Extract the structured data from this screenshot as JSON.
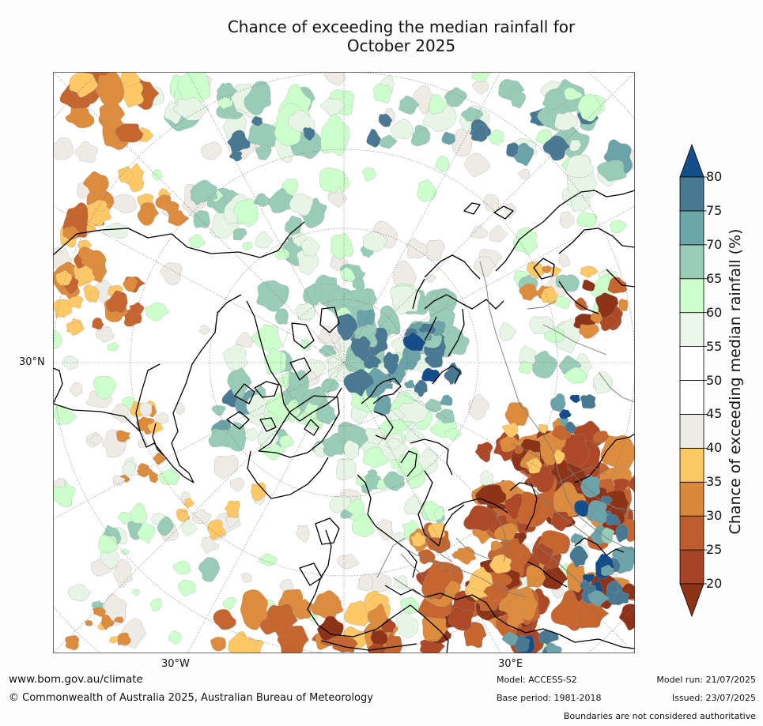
{
  "title": {
    "line1": "Chance of exceeding the median rainfall for",
    "line2": "October 2025"
  },
  "map": {
    "projection": "north polar stereographic",
    "labels": {
      "lat_30n": "30°N",
      "lon_30w": "30°W",
      "lon_30e": "30°E"
    },
    "palette": {
      "20": "#8e3218",
      "25": "#ad4926",
      "30": "#c56530",
      "35": "#dd8c3e",
      "40": "#fdc865",
      "45": "#eeebe5",
      "50": "#ffffff",
      "55": "#ffffff",
      "60": "#e6f5e6",
      "65": "#ccffcc",
      "70": "#99ccb8",
      "75": "#6ba3a9",
      "80": "#497893",
      "above": "#134e8b"
    }
  },
  "colorbar": {
    "label": "Chance of exceeding median rainfall (%)",
    "ticks": [
      "20",
      "25",
      "30",
      "35",
      "40",
      "45",
      "50",
      "55",
      "60",
      "65",
      "70",
      "75",
      "80"
    ],
    "bands": [
      "#a84425",
      "#bf5c2e",
      "#d88838",
      "#fcc864",
      "#edebe6",
      "#ffffff",
      "#ffffff",
      "#e9f6e9",
      "#ccffcc",
      "#99ccb8",
      "#6ca6a9",
      "#497893"
    ],
    "low_arrow_color": "#8e3218",
    "high_arrow_color": "#134e8b"
  },
  "footer": {
    "url": "www.bom.gov.au/climate",
    "copyright": "© Commonwealth of Australia 2025, Australian Bureau of Meteorology",
    "model": "Model: ACCESS-S2",
    "base_period": "Base period: 1981-2018",
    "model_run": "Model run: 21/07/2025",
    "issued": "Issued: 23/07/2025",
    "disclaimer": "Boundaries are not considered authoritative"
  }
}
